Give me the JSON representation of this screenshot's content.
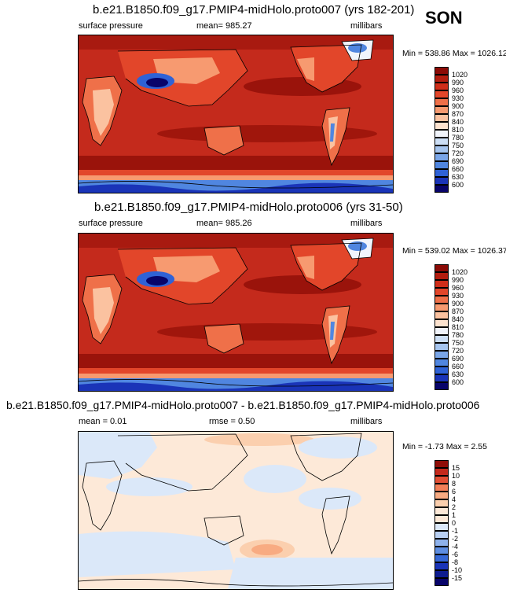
{
  "season": "SON",
  "palettes": {
    "abs": [
      "#08046a",
      "#1a34b8",
      "#2f62d6",
      "#5086e0",
      "#7aa6e8",
      "#a6c5ef",
      "#cddff6",
      "#f1f4fb",
      "#fde3cf",
      "#fbc2a0",
      "#f79a70",
      "#ef7049",
      "#e2462a",
      "#cf2e1a",
      "#b31d0f",
      "#8b0b06"
    ],
    "diff": [
      "#08046a",
      "#1a34b8",
      "#3668d6",
      "#5e8ee2",
      "#8eb2ec",
      "#b9d0f3",
      "#dbe8f9",
      "#fde9d8",
      "#fbcfae",
      "#f8ab82",
      "#f27f58",
      "#e24f34",
      "#c42a1c",
      "#8f0d08"
    ]
  },
  "panels": [
    {
      "title": "b.e21.B1850.f09_g17.PMIP4-midHolo.proto007 (yrs 182-201)",
      "left_label": "surface pressure",
      "center_label": "mean= 985.27",
      "right_label": "millibars",
      "minmax": "Min = 538.86 Max = 1026.12",
      "levels": [
        "1020",
        "990",
        "960",
        "930",
        "900",
        "870",
        "840",
        "810",
        "780",
        "750",
        "720",
        "690",
        "660",
        "630",
        "600"
      ]
    },
    {
      "title": "b.e21.B1850.f09_g17.PMIP4-midHolo.proto006 (yrs 31-50)",
      "left_label": "surface pressure",
      "center_label": "mean= 985.26",
      "right_label": "millibars",
      "minmax": "Min = 539.02 Max = 1026.37",
      "levels": [
        "1020",
        "990",
        "960",
        "930",
        "900",
        "870",
        "840",
        "810",
        "780",
        "750",
        "720",
        "690",
        "660",
        "630",
        "600"
      ]
    },
    {
      "title": "b.e21.B1850.f09_g17.PMIP4-midHolo.proto007 - b.e21.B1850.f09_g17.PMIP4-midHolo.proto006",
      "left_label": "mean =   0.01",
      "center_label": "rmse =   0.50",
      "right_label": "millibars",
      "minmax": "Min =  -1.73 Max =   2.55",
      "levels": [
        "15",
        "10",
        "8",
        "6",
        "4",
        "2",
        "1",
        "0",
        "-1",
        "-2",
        "-4",
        "-6",
        "-8",
        "-10",
        "-15"
      ]
    }
  ]
}
